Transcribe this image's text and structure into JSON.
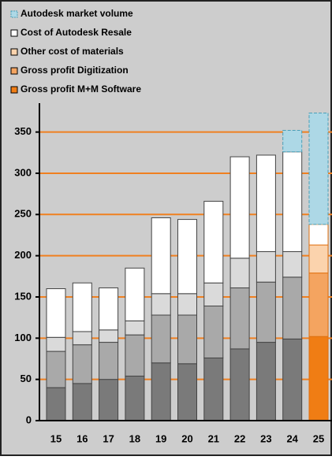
{
  "chart_data": {
    "type": "stacked_bar",
    "categories": [
      "15",
      "16",
      "17",
      "18",
      "19",
      "20",
      "21",
      "22",
      "23",
      "24",
      "25"
    ],
    "highlight_category": "25",
    "series": [
      {
        "name": "Gross profit M+M Software",
        "color": "#f07d14",
        "muted_color": "#7a7a7a",
        "values": [
          40,
          45,
          50,
          54,
          70,
          69,
          76,
          87,
          95,
          99,
          102
        ]
      },
      {
        "name": "Gross profit Digitization",
        "color": "#f4a460",
        "muted_color": "#a9a9a9",
        "values": [
          44,
          47,
          45,
          50,
          58,
          59,
          63,
          74,
          73,
          75,
          77
        ]
      },
      {
        "name": "Other cost of materials",
        "color": "#fbd3ad",
        "muted_color": "#dadada",
        "values": [
          17,
          16,
          15,
          17,
          26,
          26,
          28,
          36,
          37,
          31,
          34
        ]
      },
      {
        "name": "Cost of Autodesk Resale",
        "color": "#ffffff",
        "muted_color": "#ffffff",
        "values": [
          59,
          59,
          51,
          64,
          92,
          90,
          99,
          123,
          117,
          121,
          25
        ]
      },
      {
        "name": "Autodesk market volume",
        "color": "#add8e6",
        "muted_color": "#add8e6",
        "dashed": true,
        "values": [
          null,
          null,
          null,
          null,
          null,
          null,
          null,
          null,
          null,
          26,
          135
        ]
      }
    ],
    "ylim": [
      0,
      385
    ],
    "yticks": [
      0,
      50,
      100,
      150,
      200,
      250,
      300,
      350
    ],
    "grid": true,
    "grid_color": "#f08020",
    "legend": "top-left"
  }
}
